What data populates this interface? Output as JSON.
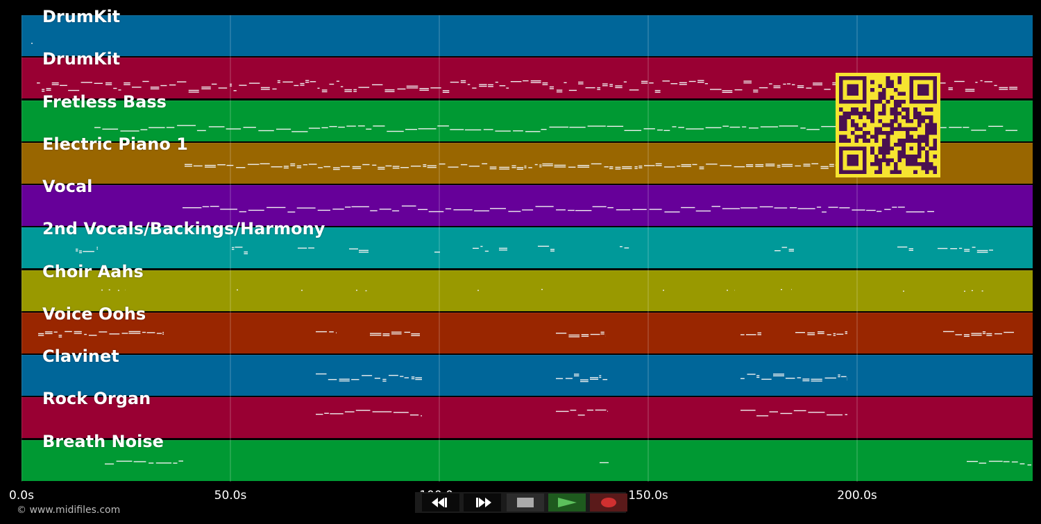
{
  "tracks": [
    {
      "name": "DrumKit",
      "color": "#006699"
    },
    {
      "name": "DrumKit",
      "color": "#990033"
    },
    {
      "name": "Fretless Bass",
      "color": "#009933"
    },
    {
      "name": "Electric Piano 1",
      "color": "#996600"
    },
    {
      "name": "Vocal",
      "color": "#660099"
    },
    {
      "name": "2nd Vocals/Backings/Harmony",
      "color": "#009999"
    },
    {
      "name": "Choir Aahs",
      "color": "#999900"
    },
    {
      "name": "Voice Oohs",
      "color": "#992600"
    },
    {
      "name": "Clavinet",
      "color": "#006699"
    },
    {
      "name": "Rock Organ",
      "color": "#990033"
    },
    {
      "name": "Breath Noise",
      "color": "#009933"
    }
  ],
  "timeline": {
    "ticks": [
      "0.0s",
      "50.0s",
      "100.0s",
      "150.0s",
      "200.0s"
    ],
    "tick_values": [
      0,
      50,
      100,
      150,
      200
    ],
    "max_seconds": 242
  },
  "copyright": "© www.midifiles.com",
  "transport": {
    "rewind_icon": "rewind-icon",
    "fast_forward_icon": "fast-forward-icon",
    "stop_icon": "stop-icon",
    "play_icon": "play-icon",
    "record_icon": "record-icon"
  },
  "colors": {
    "background": "#000000",
    "qr_background": "#f6e430",
    "qr_foreground": "#4a1050",
    "play": "#3a9a3a",
    "record": "#d03030"
  }
}
